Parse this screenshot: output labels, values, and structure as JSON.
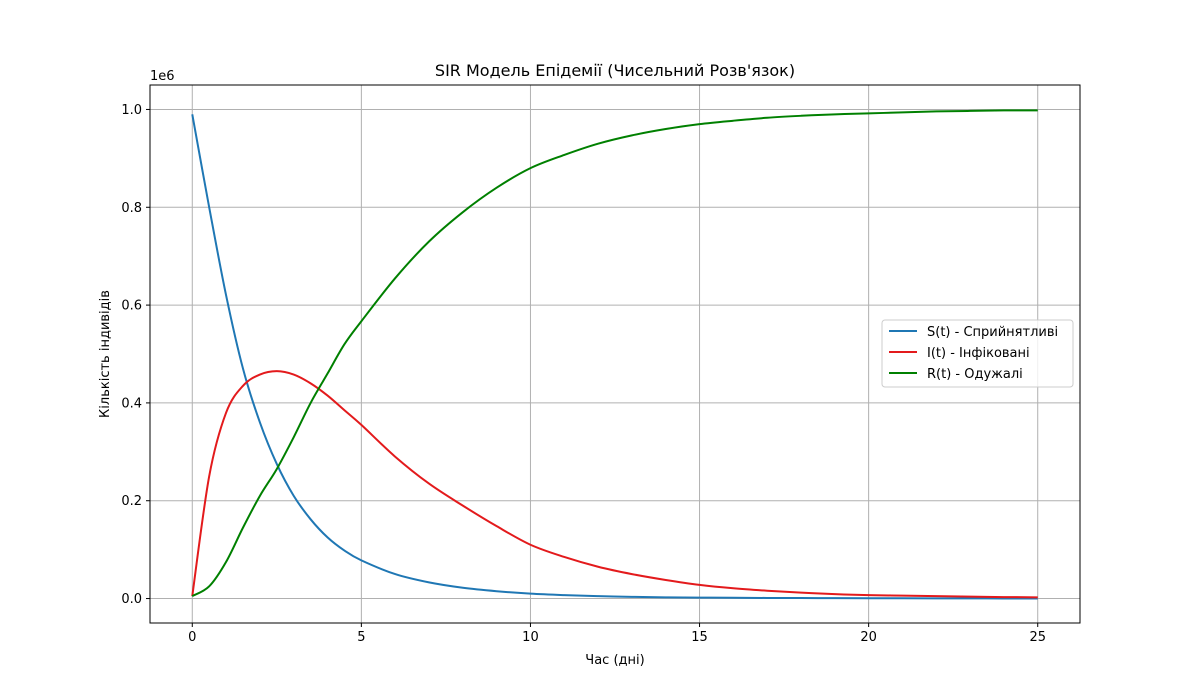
{
  "chart_data": {
    "type": "line",
    "title": "SIR Модель Епідемії (Чисельний Розв'язок)",
    "xlabel": "Час (дні)",
    "ylabel": "Кількість індивідів",
    "y_offset_label": "1e6",
    "xlim": [
      -1.25,
      26.25
    ],
    "ylim": [
      -0.05,
      1.05
    ],
    "x_ticks": [
      0,
      5,
      10,
      15,
      20,
      25
    ],
    "x_tick_labels": [
      "0",
      "5",
      "10",
      "15",
      "20",
      "25"
    ],
    "y_ticks": [
      0.0,
      0.2,
      0.4,
      0.6,
      0.8,
      1.0
    ],
    "y_tick_labels": [
      "0.0",
      "0.2",
      "0.4",
      "0.6",
      "0.8",
      "1.0"
    ],
    "grid": true,
    "legend_position": "center-right",
    "x": [
      0,
      0.5,
      1,
      1.5,
      2,
      2.5,
      3,
      3.5,
      4,
      4.5,
      5,
      6,
      7,
      8,
      9,
      10,
      11,
      12,
      13,
      14,
      15,
      16,
      17,
      18,
      19,
      20,
      21,
      22,
      23,
      24,
      25
    ],
    "series": [
      {
        "name": "S(t) - Сприйнятливі",
        "color": "#1f77b4",
        "values": [
          0.99,
          0.8,
          0.62,
          0.47,
          0.36,
          0.275,
          0.21,
          0.162,
          0.125,
          0.098,
          0.078,
          0.05,
          0.033,
          0.022,
          0.015,
          0.01,
          0.007,
          0.005,
          0.0035,
          0.0025,
          0.002,
          0.0015,
          0.0012,
          0.001,
          0.0008,
          0.0006,
          0.0005,
          0.0004,
          0.0003,
          0.0002,
          0.0002
        ]
      },
      {
        "name": "I(t) - Інфіковані",
        "color": "#e31a1c",
        "values": [
          0.005,
          0.25,
          0.38,
          0.435,
          0.458,
          0.465,
          0.458,
          0.44,
          0.415,
          0.385,
          0.355,
          0.29,
          0.235,
          0.19,
          0.148,
          0.11,
          0.085,
          0.065,
          0.05,
          0.038,
          0.028,
          0.021,
          0.016,
          0.012,
          0.009,
          0.007,
          0.006,
          0.005,
          0.004,
          0.003,
          0.0025
        ]
      },
      {
        "name": "R(t) - Одужалі",
        "color": "#008000",
        "values": [
          0.005,
          0.025,
          0.075,
          0.145,
          0.21,
          0.265,
          0.33,
          0.4,
          0.46,
          0.52,
          0.567,
          0.655,
          0.73,
          0.79,
          0.84,
          0.88,
          0.907,
          0.93,
          0.947,
          0.96,
          0.97,
          0.977,
          0.983,
          0.987,
          0.99,
          0.992,
          0.994,
          0.996,
          0.997,
          0.998,
          0.998
        ]
      }
    ]
  }
}
